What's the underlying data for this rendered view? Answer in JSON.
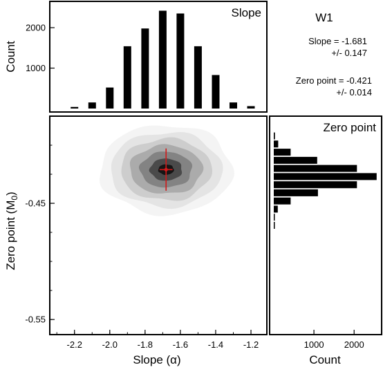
{
  "chart_data": {
    "type": "histogram-corner",
    "band_title": "W1",
    "stats": {
      "slope_line": "Slope = -1.681",
      "slope_err": "+/- 0.147",
      "zp_line": "Zero point = -0.421",
      "zp_err": "+/- 0.014"
    },
    "top_histogram": {
      "title": "Slope",
      "ylabel": "Count",
      "yticks": [
        1000,
        2000
      ],
      "ylim": [
        0,
        2650
      ],
      "xlim": [
        -2.34,
        -1.11
      ],
      "bin_centers": [
        -2.2,
        -2.1,
        -2.0,
        -1.9,
        -1.8,
        -1.7,
        -1.6,
        -1.5,
        -1.4,
        -1.3,
        -1.2
      ],
      "counts": [
        40,
        150,
        520,
        1540,
        1980,
        2420,
        2350,
        1540,
        830,
        150,
        60
      ]
    },
    "joint": {
      "type": "contour",
      "xlabel": "Slope (α)",
      "ylabel_main": "Zero point (M",
      "ylabel_sub": "0",
      "ylabel_close": ")",
      "xticks": [
        "-2.2",
        "-2.0",
        "-1.8",
        "-1.6",
        "-1.4",
        "-1.2"
      ],
      "xtick_values": [
        -2.2,
        -2.0,
        -1.8,
        -1.6,
        -1.4,
        -1.2
      ],
      "yticks": [
        "-0.45",
        "-0.55"
      ],
      "ytick_values": [
        -0.45,
        -0.55
      ],
      "xlim": [
        -2.34,
        -1.11
      ],
      "ylim": [
        -0.563,
        -0.375
      ],
      "center": [
        -1.681,
        -0.421
      ],
      "error": [
        0.147,
        0.014
      ],
      "levels": [
        {
          "sx": 2.55,
          "sy": 2.75,
          "color": "#f4f4f4"
        },
        {
          "sx": 2.15,
          "sy": 2.3,
          "color": "#e4e4e4"
        },
        {
          "sx": 1.75,
          "sy": 1.9,
          "color": "#cdcdcd"
        },
        {
          "sx": 1.4,
          "sy": 1.5,
          "color": "#ababab"
        },
        {
          "sx": 1.0,
          "sy": 1.1,
          "color": "#838383"
        },
        {
          "sx": 0.62,
          "sy": 0.68,
          "color": "#4a4a4a"
        },
        {
          "sx": 0.3,
          "sy": 0.32,
          "color": "#161616"
        }
      ]
    },
    "right_histogram": {
      "title": "Zero point",
      "xlabel": "Count",
      "xticks": [
        1000,
        2000
      ],
      "xlim": [
        -100,
        2650
      ],
      "ylim": [
        -0.563,
        -0.375
      ],
      "bin_centers": [
        -0.392,
        -0.399,
        -0.406,
        -0.413,
        -0.42,
        -0.427,
        -0.434,
        -0.441,
        -0.448,
        -0.455,
        -0.462,
        -0.469
      ],
      "counts": [
        30,
        110,
        420,
        1080,
        2070,
        2560,
        2070,
        1100,
        420,
        100,
        20,
        10
      ]
    }
  }
}
